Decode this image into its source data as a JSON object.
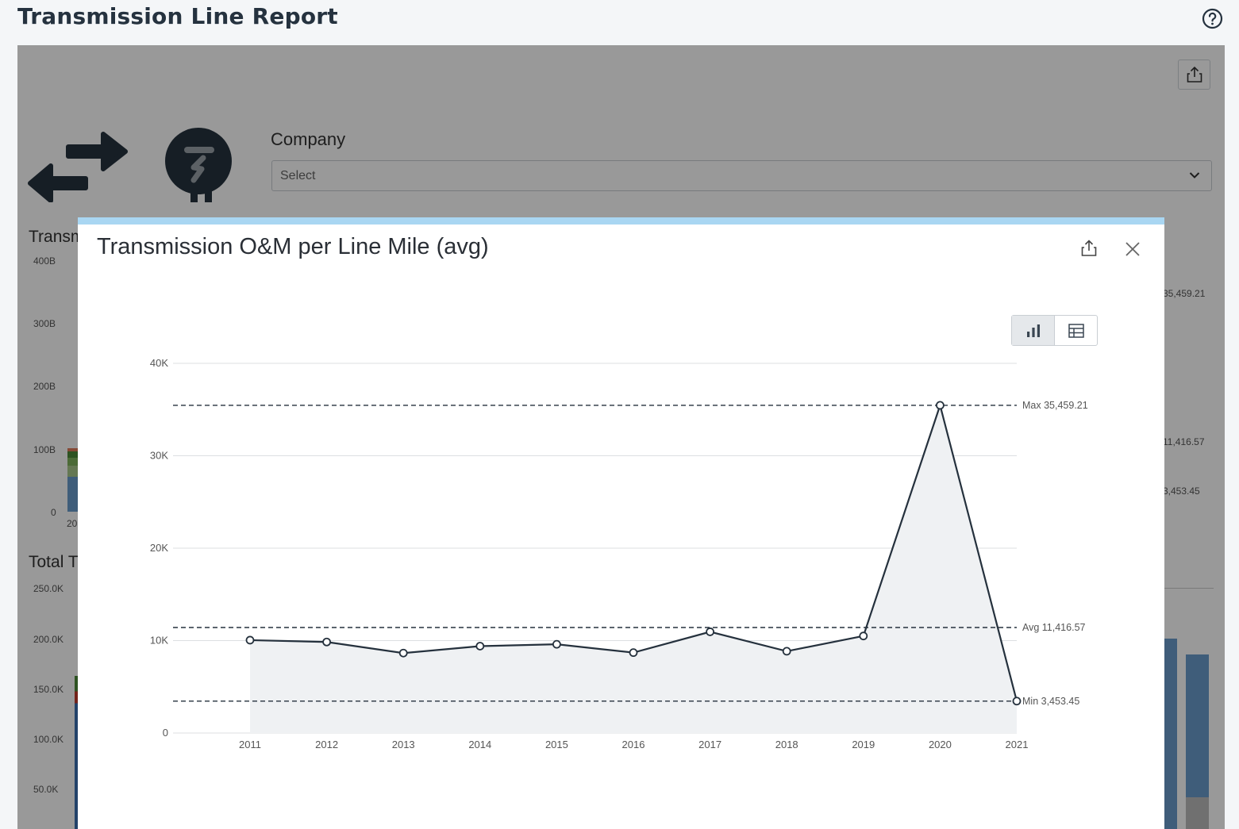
{
  "page": {
    "title": "Transmission Line Report"
  },
  "background": {
    "company_label": "Company",
    "company_select": "Select",
    "section1_title": "Transmi",
    "section2_title": "Total T",
    "left_axis_ticks_1": [
      "400B",
      "300B",
      "200B",
      "100B",
      "0"
    ],
    "left_axis_partial_year": "20",
    "left_axis_ticks_2": [
      "250.0K",
      "200.0K",
      "150.0K",
      "100.0K",
      "50.0K"
    ],
    "right_labels": [
      "35,459.21",
      "11,416.57",
      "3,453.45"
    ]
  },
  "modal": {
    "title": "Transmission O&M per Line Mile (avg)"
  },
  "colors": {
    "line": "#25313d",
    "area": "#eff1f3",
    "modal_top_bar": "#a9d6f2",
    "grid": "#dcdfe2"
  },
  "chart_data": {
    "type": "line",
    "title": "Transmission O&M per Line Mile (avg)",
    "xlabel": "",
    "ylabel": "",
    "ylim": [
      0,
      40000
    ],
    "y_ticks": [
      "0",
      "10K",
      "20K",
      "30K",
      "40K"
    ],
    "x": [
      "2011",
      "2012",
      "2013",
      "2014",
      "2015",
      "2016",
      "2017",
      "2018",
      "2019",
      "2020",
      "2021"
    ],
    "series": [
      {
        "values": [
          10050,
          9850,
          8650,
          9400,
          9600,
          8700,
          10950,
          8850,
          10500,
          35459.21,
          3453.45
        ]
      }
    ],
    "reference_lines": [
      {
        "label": "Max 35,459.21",
        "value": 35459.21
      },
      {
        "label": "Avg 11,416.57",
        "value": 11416.57
      },
      {
        "label": "Min 3,453.45",
        "value": 3453.45
      }
    ],
    "grid": true,
    "area_fill": true
  }
}
